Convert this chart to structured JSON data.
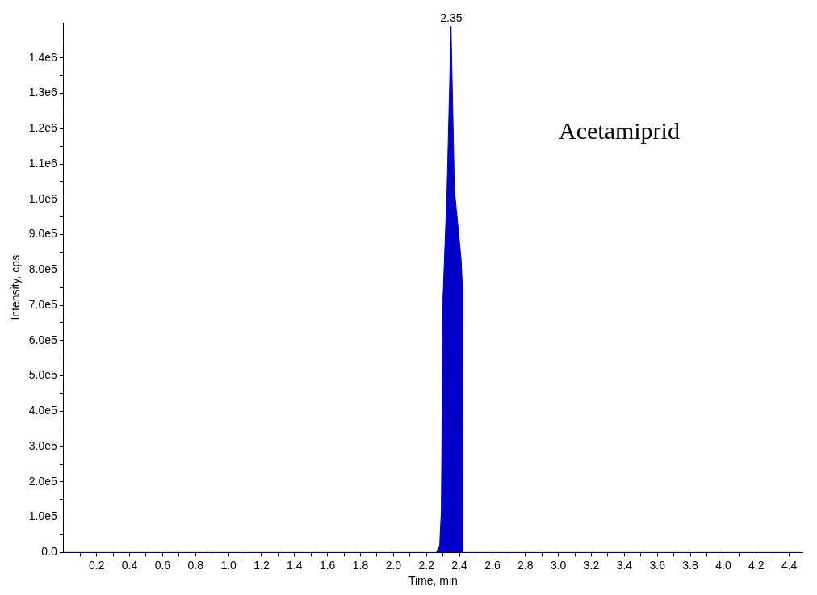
{
  "chart_data": {
    "type": "area",
    "xlabel": "Time, min",
    "ylabel": "Intensity, cps",
    "annotations": [
      {
        "text": "2.35",
        "x": 2.35,
        "y": 1490000
      },
      "Acetamiprid"
    ],
    "x": [
      0,
      2.2,
      2.26,
      2.28,
      2.29,
      2.3,
      2.325,
      2.349,
      2.369,
      2.41,
      2.417,
      2.418,
      2.5,
      4.48
    ],
    "series": [
      {
        "color": "#0000c8",
        "values": [
          0,
          0,
          0,
          20000,
          120000,
          720000,
          1030000,
          1490000,
          1030000,
          830000,
          760000,
          0,
          0,
          0
        ]
      }
    ],
    "xlim": [
      0,
      4.48
    ],
    "ylim": [
      0,
      1500000
    ],
    "xticks": [
      {
        "value": 0.1,
        "label": null
      },
      0.2,
      {
        "value": 0.3,
        "label": null
      },
      0.4,
      {
        "value": 0.5,
        "label": null
      },
      0.6,
      {
        "value": 0.7,
        "label": null
      },
      0.8,
      {
        "value": 0.9,
        "label": null
      },
      {
        "value": 1,
        "label": "1.0"
      },
      {
        "value": 1.1,
        "label": null
      },
      1.2,
      {
        "value": 1.3,
        "label": null
      },
      1.4,
      {
        "value": 1.5,
        "label": null
      },
      1.6,
      {
        "value": 1.7,
        "label": null
      },
      1.8,
      {
        "value": 1.9,
        "label": null
      },
      {
        "value": 2,
        "label": "2.0"
      },
      {
        "value": 2.1,
        "label": null
      },
      2.2,
      {
        "value": 2.3,
        "label": null
      },
      2.4,
      {
        "value": 2.5,
        "label": null
      },
      2.6,
      {
        "value": 2.7,
        "label": null
      },
      2.8,
      {
        "value": 2.9,
        "label": null
      },
      {
        "value": 3,
        "label": "3.0"
      },
      {
        "value": 3.1,
        "label": null
      },
      3.2,
      {
        "value": 3.3,
        "label": null
      },
      3.4,
      {
        "value": 3.5,
        "label": null
      },
      3.6,
      {
        "value": 3.7,
        "label": null
      },
      3.8,
      {
        "value": 3.9,
        "label": null
      },
      {
        "value": 4,
        "label": "4.0"
      },
      {
        "value": 4.1,
        "label": null
      },
      4.2,
      {
        "value": 4.3,
        "label": null
      },
      4.4
    ],
    "yticks": [
      {
        "value": 0,
        "label": "0.0"
      },
      {
        "value": 50000,
        "label": null
      },
      {
        "value": 100000,
        "label": "1.0e5"
      },
      {
        "value": 150000,
        "label": null
      },
      {
        "value": 200000,
        "label": "2.0e5"
      },
      {
        "value": 250000,
        "label": null
      },
      {
        "value": 300000,
        "label": "3.0e5"
      },
      {
        "value": 350000,
        "label": null
      },
      {
        "value": 400000,
        "label": "4.0e5"
      },
      {
        "value": 450000,
        "label": null
      },
      {
        "value": 500000,
        "label": "5.0e5"
      },
      {
        "value": 550000,
        "label": null
      },
      {
        "value": 600000,
        "label": "6.0e5"
      },
      {
        "value": 650000,
        "label": null
      },
      {
        "value": 700000,
        "label": "7.0e5"
      },
      {
        "value": 750000,
        "label": null
      },
      {
        "value": 800000,
        "label": "8.0e5"
      },
      {
        "value": 850000,
        "label": null
      },
      {
        "value": 900000,
        "label": "9.0e5"
      },
      {
        "value": 950000,
        "label": null
      },
      {
        "value": 1000000,
        "label": "1.0e6"
      },
      {
        "value": 1050000,
        "label": null
      },
      {
        "value": 1100000,
        "label": "1.1e6"
      },
      {
        "value": 1150000,
        "label": null
      },
      {
        "value": 1200000,
        "label": "1.2e6"
      },
      {
        "value": 1250000,
        "label": null
      },
      {
        "value": 1300000,
        "label": "1.3e6"
      },
      {
        "value": 1350000,
        "label": null
      },
      {
        "value": 1400000,
        "label": "1.4e6"
      },
      {
        "value": 1450000,
        "label": null
      }
    ],
    "grid": false,
    "legend": false,
    "marker": "none"
  }
}
